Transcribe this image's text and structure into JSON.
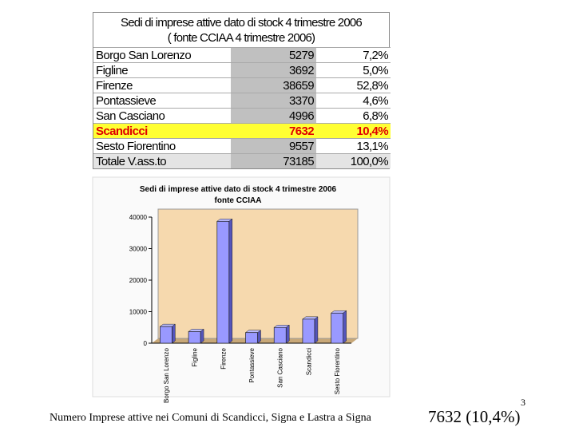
{
  "table": {
    "title": [
      "Sedi di imprese attive dato di stock 4 trimestre 2006",
      "( fonte CCIAA 4 trimestre 2006)"
    ],
    "rows": [
      [
        "Borgo San Lorenzo",
        "5279",
        "7,2%"
      ],
      [
        "Figline",
        "3692",
        "5,0%"
      ],
      [
        "Firenze",
        "38659",
        "52,8%"
      ],
      [
        "Pontassieve",
        "3370",
        "4,6%"
      ],
      [
        "San Casciano",
        "4996",
        "6,8%"
      ],
      [
        "Scandicci",
        "7632",
        "10,4%"
      ],
      [
        "Sesto Fiorentino",
        "9557",
        "13,1%"
      ],
      [
        "Totale V.ass.to",
        "73185",
        "100,0%"
      ]
    ]
  },
  "chart_data": {
    "type": "bar",
    "title": "Sedi di imprese attive dato di stock 4 trimestre 2006",
    "subtitle": "fonte CCIAA",
    "categories": [
      "Borgo San Lorenzo",
      "Figline",
      "Firenze",
      "Pontassieve",
      "San Casciano",
      "Scandicci",
      "Sesto Fiorentino"
    ],
    "values": [
      5279,
      3692,
      38659,
      3370,
      4996,
      7632,
      9557
    ],
    "color": "#9999ff",
    "ylim": [
      0,
      40000
    ],
    "yticks": [
      0,
      10000,
      20000,
      30000,
      40000
    ]
  },
  "footer": {
    "caption": "Numero Imprese attive nei Comuni di Scandicci, Signa e Lastra a Signa",
    "highlight": "7632 (10,4%)",
    "page_number": "3"
  }
}
